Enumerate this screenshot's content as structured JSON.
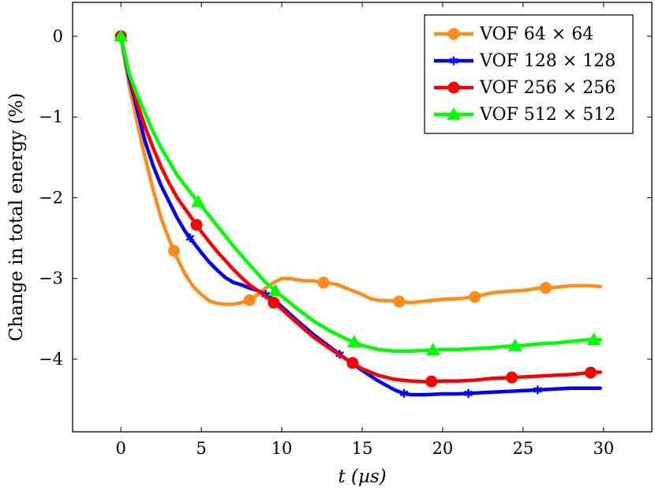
{
  "chart_data": {
    "type": "line",
    "xlabel": "t (µs)",
    "ylabel": "Change in total energy (%)",
    "xlim": [
      -3,
      33
    ],
    "ylim": [
      -4.9,
      0.42
    ],
    "xticks": [
      0,
      5,
      10,
      15,
      20,
      25,
      30
    ],
    "yticks": [
      0,
      -1,
      -2,
      -3,
      -4
    ],
    "xtick_labels": [
      "0",
      "5",
      "10",
      "15",
      "20",
      "25",
      "30"
    ],
    "ytick_labels": [
      "0",
      "−1",
      "−2",
      "−3",
      "−4"
    ],
    "grid": false,
    "legend_position": "top-right",
    "series": [
      {
        "name": "VOF 64 × 64",
        "color": "#ff8c1a",
        "marker": "circle",
        "x": [
          0,
          0.5,
          1,
          1.5,
          2,
          2.5,
          3,
          3.5,
          4,
          4.5,
          5,
          5.5,
          6,
          6.5,
          7,
          7.5,
          8,
          8.5,
          9,
          9.5,
          10,
          10.5,
          11,
          11.5,
          12,
          12.5,
          13,
          13.5,
          14,
          14.5,
          15,
          15.5,
          16,
          17,
          18,
          19,
          20,
          21,
          22,
          23,
          24,
          25,
          26,
          27,
          28,
          29,
          29.8
        ],
        "values": [
          0,
          -0.6,
          -1.05,
          -1.5,
          -1.9,
          -2.25,
          -2.52,
          -2.75,
          -2.95,
          -3.1,
          -3.2,
          -3.28,
          -3.31,
          -3.32,
          -3.32,
          -3.3,
          -3.27,
          -3.2,
          -3.12,
          -3.05,
          -3.0,
          -3.0,
          -3.02,
          -3.03,
          -3.03,
          -3.05,
          -3.06,
          -3.08,
          -3.12,
          -3.16,
          -3.2,
          -3.25,
          -3.27,
          -3.28,
          -3.3,
          -3.28,
          -3.26,
          -3.25,
          -3.23,
          -3.18,
          -3.16,
          -3.15,
          -3.12,
          -3.11,
          -3.09,
          -3.09,
          -3.1
        ],
        "marker_x": [
          0,
          3.3,
          8,
          12.6,
          17.3,
          22,
          26.4
        ]
      },
      {
        "name": "VOF 128 × 128",
        "color": "#0000ff",
        "marker": "star",
        "x": [
          0,
          0.5,
          1,
          1.5,
          2,
          2.5,
          3,
          3.5,
          4,
          4.5,
          5,
          5.5,
          6,
          6.5,
          7,
          7.5,
          8,
          8.5,
          9,
          9.5,
          10,
          11,
          12,
          13,
          14,
          15,
          16,
          17,
          17.5,
          18,
          18.5,
          19,
          20,
          21,
          22,
          23,
          24,
          25,
          26,
          27,
          28,
          29,
          29.8
        ],
        "values": [
          0,
          -0.5,
          -0.9,
          -1.3,
          -1.6,
          -1.85,
          -2.05,
          -2.25,
          -2.42,
          -2.55,
          -2.68,
          -2.8,
          -2.9,
          -2.99,
          -3.05,
          -3.08,
          -3.12,
          -3.15,
          -3.2,
          -3.26,
          -3.35,
          -3.53,
          -3.7,
          -3.85,
          -4.0,
          -4.14,
          -4.27,
          -4.38,
          -4.42,
          -4.44,
          -4.44,
          -4.44,
          -4.43,
          -4.43,
          -4.42,
          -4.41,
          -4.4,
          -4.39,
          -4.38,
          -4.37,
          -4.36,
          -4.36,
          -4.36
        ],
        "marker_x": [
          0,
          4.3,
          9,
          13.6,
          17.6,
          21.6,
          25.9
        ]
      },
      {
        "name": "VOF 256 × 256",
        "color": "#ff0000",
        "marker": "circle",
        "x": [
          0,
          0.5,
          1,
          1.5,
          2,
          2.5,
          3,
          3.5,
          4,
          4.5,
          5,
          5.5,
          6,
          6.5,
          7,
          7.5,
          8,
          8.5,
          9,
          9.5,
          10,
          11,
          12,
          13,
          14,
          15,
          16,
          17,
          18,
          19,
          20,
          21,
          22,
          23,
          24,
          25,
          26,
          27,
          28,
          29,
          29.8
        ],
        "values": [
          0,
          -0.45,
          -0.82,
          -1.12,
          -1.38,
          -1.62,
          -1.82,
          -2.0,
          -2.14,
          -2.28,
          -2.42,
          -2.55,
          -2.67,
          -2.78,
          -2.89,
          -2.99,
          -3.08,
          -3.15,
          -3.22,
          -3.3,
          -3.38,
          -3.56,
          -3.73,
          -3.87,
          -4.0,
          -4.12,
          -4.2,
          -4.25,
          -4.27,
          -4.28,
          -4.27,
          -4.27,
          -4.26,
          -4.24,
          -4.23,
          -4.22,
          -4.21,
          -4.2,
          -4.19,
          -4.17,
          -4.16
        ],
        "marker_x": [
          0,
          4.7,
          9.5,
          14.4,
          19.3,
          24.3,
          29.2
        ]
      },
      {
        "name": "VOF 512 × 512",
        "color": "#00ff00",
        "marker": "triangle",
        "x": [
          0,
          0.5,
          1,
          1.5,
          2,
          2.5,
          3,
          3.5,
          4,
          4.5,
          5,
          6,
          7,
          8,
          9,
          10,
          11,
          12,
          13,
          14,
          15,
          16,
          17,
          18,
          19,
          20,
          21,
          22,
          23,
          24,
          25,
          26,
          27,
          28,
          29,
          29.8
        ],
        "values": [
          0,
          -0.45,
          -0.72,
          -0.95,
          -1.18,
          -1.38,
          -1.55,
          -1.72,
          -1.85,
          -1.98,
          -2.1,
          -2.35,
          -2.6,
          -2.83,
          -3.05,
          -3.22,
          -3.38,
          -3.53,
          -3.65,
          -3.75,
          -3.83,
          -3.88,
          -3.9,
          -3.9,
          -3.89,
          -3.88,
          -3.88,
          -3.87,
          -3.86,
          -3.84,
          -3.83,
          -3.81,
          -3.8,
          -3.78,
          -3.76,
          -3.76
        ],
        "marker_x": [
          0,
          4.8,
          9.6,
          14.5,
          19.4,
          24.5,
          29.4
        ]
      }
    ]
  }
}
